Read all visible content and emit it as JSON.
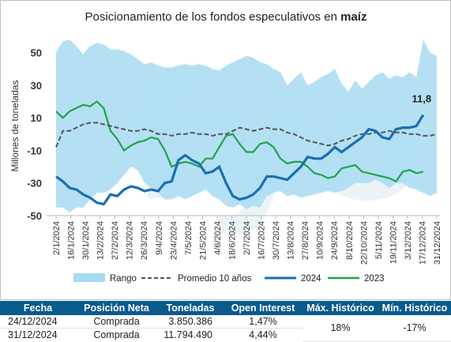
{
  "chart_data": {
    "type": "line",
    "title_prefix": "Posicionamiento de los fondos especulativos en ",
    "title_emphasis": "maíz",
    "ylabel": "Millones de toneladas",
    "xlabel": "",
    "ylim": [
      -50,
      60
    ],
    "yticks": [
      50,
      30,
      10,
      -10,
      -30,
      -50
    ],
    "grid": false,
    "legend_position": "bottom",
    "watermark": "fyo",
    "end_annotation": "11,8",
    "x_tick_labels": [
      "2/1/2024",
      "16/1/2024",
      "30/1/2024",
      "13/2/2024",
      "27/2/2024",
      "12/3/2024",
      "26/3/2024",
      "9/4/2024",
      "23/4/2024",
      "7/5/2024",
      "21/5/2024",
      "4/6/2024",
      "18/6/2024",
      "2/7/2024",
      "16/7/2024",
      "30/7/2024",
      "13/8/2024",
      "27/8/2024",
      "10/9/2024",
      "24/9/2024",
      "8/10/2024",
      "22/10/2024",
      "5/11/2024",
      "19/11/2024",
      "3/12/2024",
      "17/12/2024",
      "31/12/2024"
    ],
    "range_high": [
      50,
      57,
      58,
      54,
      49,
      54,
      56,
      55,
      52,
      52,
      51,
      49,
      46,
      43,
      44,
      42,
      41,
      41,
      42,
      43,
      42,
      43,
      42,
      40,
      39,
      42,
      44,
      46,
      48,
      47,
      44,
      43,
      40,
      38,
      30,
      34,
      38,
      30,
      32,
      35,
      37,
      40,
      31,
      26,
      33,
      28,
      32,
      36,
      38,
      34,
      36,
      35,
      38,
      35,
      58,
      50,
      48
    ],
    "range_low": [
      -45,
      -45,
      -48,
      -45,
      -45,
      -40,
      -36,
      -36,
      -34,
      -30,
      -25,
      -20,
      -22,
      -30,
      -33,
      -36,
      -40,
      -40,
      -38,
      -40,
      -38,
      -36,
      -34,
      -38,
      -40,
      -44,
      -45,
      -43,
      -46,
      -44,
      -45,
      -38,
      -36,
      -35,
      -38,
      -37,
      -39,
      -38,
      -37,
      -36,
      -35,
      -36,
      -35,
      -33,
      -30,
      -30,
      -30,
      -28,
      -30,
      -33,
      -30,
      -30,
      -33,
      -34,
      -36,
      -38,
      -36
    ],
    "series": [
      {
        "name": "Rango",
        "color": "#a8daf2"
      },
      {
        "name": "Promedio 10 años",
        "color": "#555555",
        "values": [
          -8,
          2,
          2,
          4,
          6,
          7,
          7,
          6,
          5,
          4,
          3,
          2,
          2,
          3,
          2,
          0,
          0,
          -1,
          0,
          0,
          1,
          0,
          0,
          -1,
          0,
          0,
          2,
          4,
          3,
          2,
          3,
          4,
          3,
          3,
          1,
          0,
          -2,
          -4,
          -5,
          -6,
          -7,
          -6,
          -4,
          -3,
          -1,
          0,
          0,
          1,
          1,
          2,
          1,
          1,
          0,
          0,
          -1,
          -1,
          0
        ]
      },
      {
        "name": "2024",
        "color": "#1a6fb0",
        "values": [
          -26,
          -29,
          -33,
          -34,
          -37,
          -39,
          -42,
          -43,
          -37,
          -38,
          -34,
          -32,
          -33,
          -35,
          -34,
          -35,
          -30,
          -29,
          -16,
          -13,
          -16,
          -18,
          -24,
          -23,
          -20,
          -30,
          -38,
          -40,
          -39,
          -37,
          -33,
          -26,
          -26,
          -27,
          -28,
          -24,
          -20,
          -14,
          -15,
          -15,
          -12,
          -8,
          -11,
          -8,
          -5,
          -2,
          3,
          2,
          -2,
          -3,
          3,
          4,
          4,
          5,
          11.8
        ]
      },
      {
        "name": "2023",
        "color": "#22a24a",
        "values": [
          14,
          10,
          14,
          16,
          18,
          17,
          20,
          16,
          2,
          -3,
          -10,
          -7,
          -5,
          -4,
          -2,
          -3,
          -10,
          -20,
          -18,
          -17,
          -18,
          -20,
          -15,
          -15,
          -8,
          -1,
          0,
          -6,
          -11,
          -11,
          -6,
          -5,
          -8,
          -15,
          -18,
          -17,
          -17,
          -20,
          -24,
          -25,
          -27,
          -26,
          -21,
          -20,
          -19,
          -23,
          -24,
          -25,
          -26,
          -27,
          -29,
          -23,
          -22,
          -24,
          -23
        ]
      }
    ]
  },
  "table": {
    "headers": [
      "Fecha",
      "Posición Neta",
      "Toneladas",
      "Open Interest",
      "Máx. Histórico",
      "Mín. Histórico"
    ],
    "rows": [
      {
        "fecha": "24/12/2024",
        "posicion": "Comprada",
        "toneladas": "3.850.386",
        "open_interest": "1,47%"
      },
      {
        "fecha": "31/12/2024",
        "posicion": "Comprada",
        "toneladas": "11.794.490",
        "open_interest": "4,44%"
      }
    ],
    "max_historico": "18%",
    "min_historico": "-17%"
  }
}
